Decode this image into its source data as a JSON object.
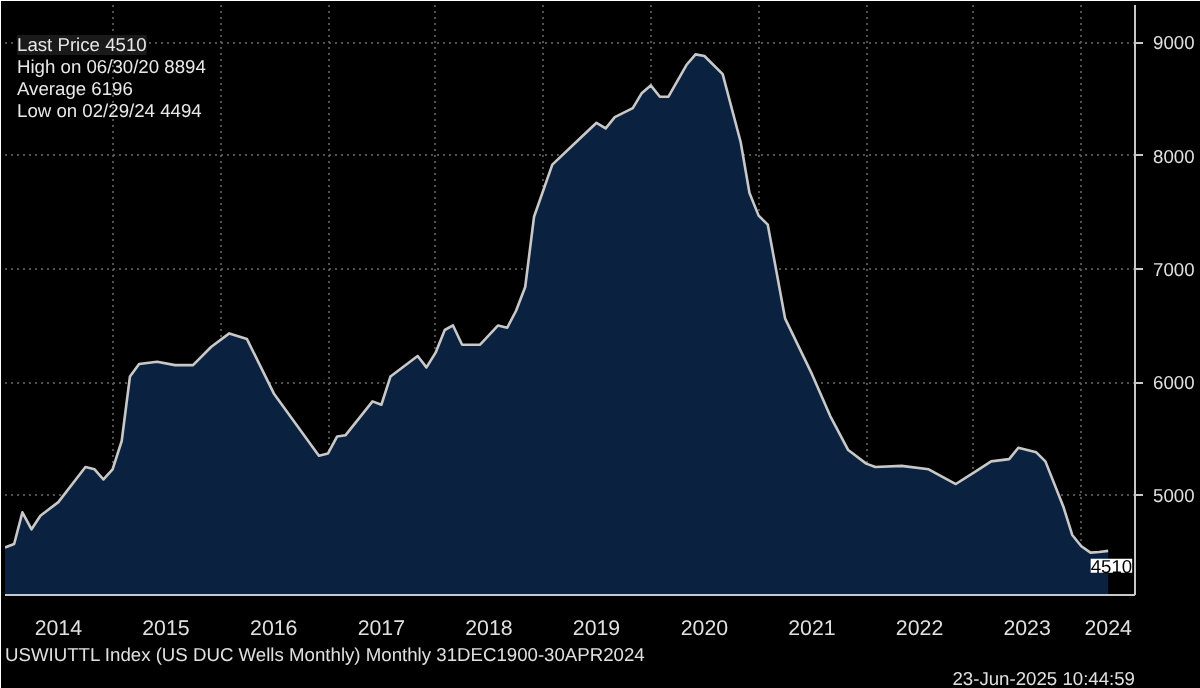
{
  "chart_data": {
    "type": "area",
    "annotations": [
      "Last Price 4510",
      "High on 06/30/20 8894",
      "Average 6196",
      "Low on 02/29/24 4494",
      "USWIUTTL Index (US DUC Wells Monthly)  Monthly 31DEC1900-30APR2024",
      "23-Jun-2025 10:44:59",
      {
        "text": "4510",
        "x": "2024-04",
        "y": 4510
      }
    ],
    "x": [
      "2014-01",
      "2014-02",
      "2014-03",
      "2014-04",
      "2014-05",
      "2014-07",
      "2014-10",
      "2014-11",
      "2014-12",
      "2015-01",
      "2015-02",
      "2015-03",
      "2015-04",
      "2015-06",
      "2015-08",
      "2015-10",
      "2015-12",
      "2016-02",
      "2016-04",
      "2016-07",
      "2016-12",
      "2017-01",
      "2017-02",
      "2017-03",
      "2017-06",
      "2017-07",
      "2017-08",
      "2017-11",
      "2017-12",
      "2018-01",
      "2018-02",
      "2018-03",
      "2018-04",
      "2018-06",
      "2018-08",
      "2018-09",
      "2018-10",
      "2018-11",
      "2018-12",
      "2019-02",
      "2019-05",
      "2019-07",
      "2019-08",
      "2019-09",
      "2019-11",
      "2019-12",
      "2020-01",
      "2020-02",
      "2020-03",
      "2020-05",
      "2020-06",
      "2020-07",
      "2020-09",
      "2020-11",
      "2020-12",
      "2021-01",
      "2021-02",
      "2021-04",
      "2021-07",
      "2021-09",
      "2021-11",
      "2022-01",
      "2022-02",
      "2022-05",
      "2022-08",
      "2022-11",
      "2023-01",
      "2023-03",
      "2023-05",
      "2023-06",
      "2023-08",
      "2023-09",
      "2023-11",
      "2023-12",
      "2024-01",
      "2024-02",
      "2024-03",
      "2024-04"
    ],
    "series": [
      {
        "color": "#0a2240",
        "values": [
          4540,
          4570,
          4850,
          4700,
          4820,
          4940,
          5250,
          5230,
          5140,
          5230,
          5480,
          6050,
          6160,
          6180,
          6150,
          6150,
          6310,
          6430,
          6380,
          5900,
          5350,
          5370,
          5520,
          5530,
          5830,
          5800,
          6050,
          6230,
          6130,
          6260,
          6460,
          6500,
          6330,
          6330,
          6500,
          6480,
          6630,
          6840,
          7460,
          7920,
          8140,
          8290,
          8240,
          8340,
          8420,
          8550,
          8620,
          8520,
          8520,
          8800,
          8894,
          8880,
          8720,
          8120,
          7670,
          7470,
          7390,
          6560,
          6070,
          5700,
          5400,
          5280,
          5250,
          5260,
          5230,
          5100,
          5200,
          5300,
          5320,
          5420,
          5380,
          5300,
          4900,
          4650,
          4550,
          4494,
          4500,
          4510
        ]
      }
    ],
    "xlim": [
      "2014-01",
      "2024-07"
    ],
    "xticks": [
      {
        "value": "2014-07",
        "label": "2014"
      },
      {
        "value": "2015",
        "label": null
      },
      {
        "value": "2015-07",
        "label": "2015"
      },
      {
        "value": "2016",
        "label": null
      },
      {
        "value": "2016-07",
        "label": "2016"
      },
      {
        "value": "2017",
        "label": null
      },
      {
        "value": "2017-07",
        "label": "2017"
      },
      {
        "value": "2018",
        "label": null
      },
      {
        "value": "2018-07",
        "label": "2018"
      },
      {
        "value": "2019",
        "label": null
      },
      {
        "value": "2019-07",
        "label": "2019"
      },
      {
        "value": "2020",
        "label": null
      },
      {
        "value": "2020-07",
        "label": "2020"
      },
      {
        "value": "2021",
        "label": null
      },
      {
        "value": "2021-07",
        "label": "2021"
      },
      {
        "value": "2022",
        "label": null
      },
      {
        "value": "2022-07",
        "label": "2022"
      },
      {
        "value": "2023",
        "label": null
      },
      {
        "value": "2023-07",
        "label": "2023"
      },
      {
        "value": "2024",
        "label": null
      },
      {
        "value": "2024-04",
        "label": "2024"
      }
    ],
    "ylim": [
      4120,
      9330
    ],
    "yticks": [
      5000,
      6000,
      7000,
      8000,
      9000
    ],
    "grid": true
  }
}
